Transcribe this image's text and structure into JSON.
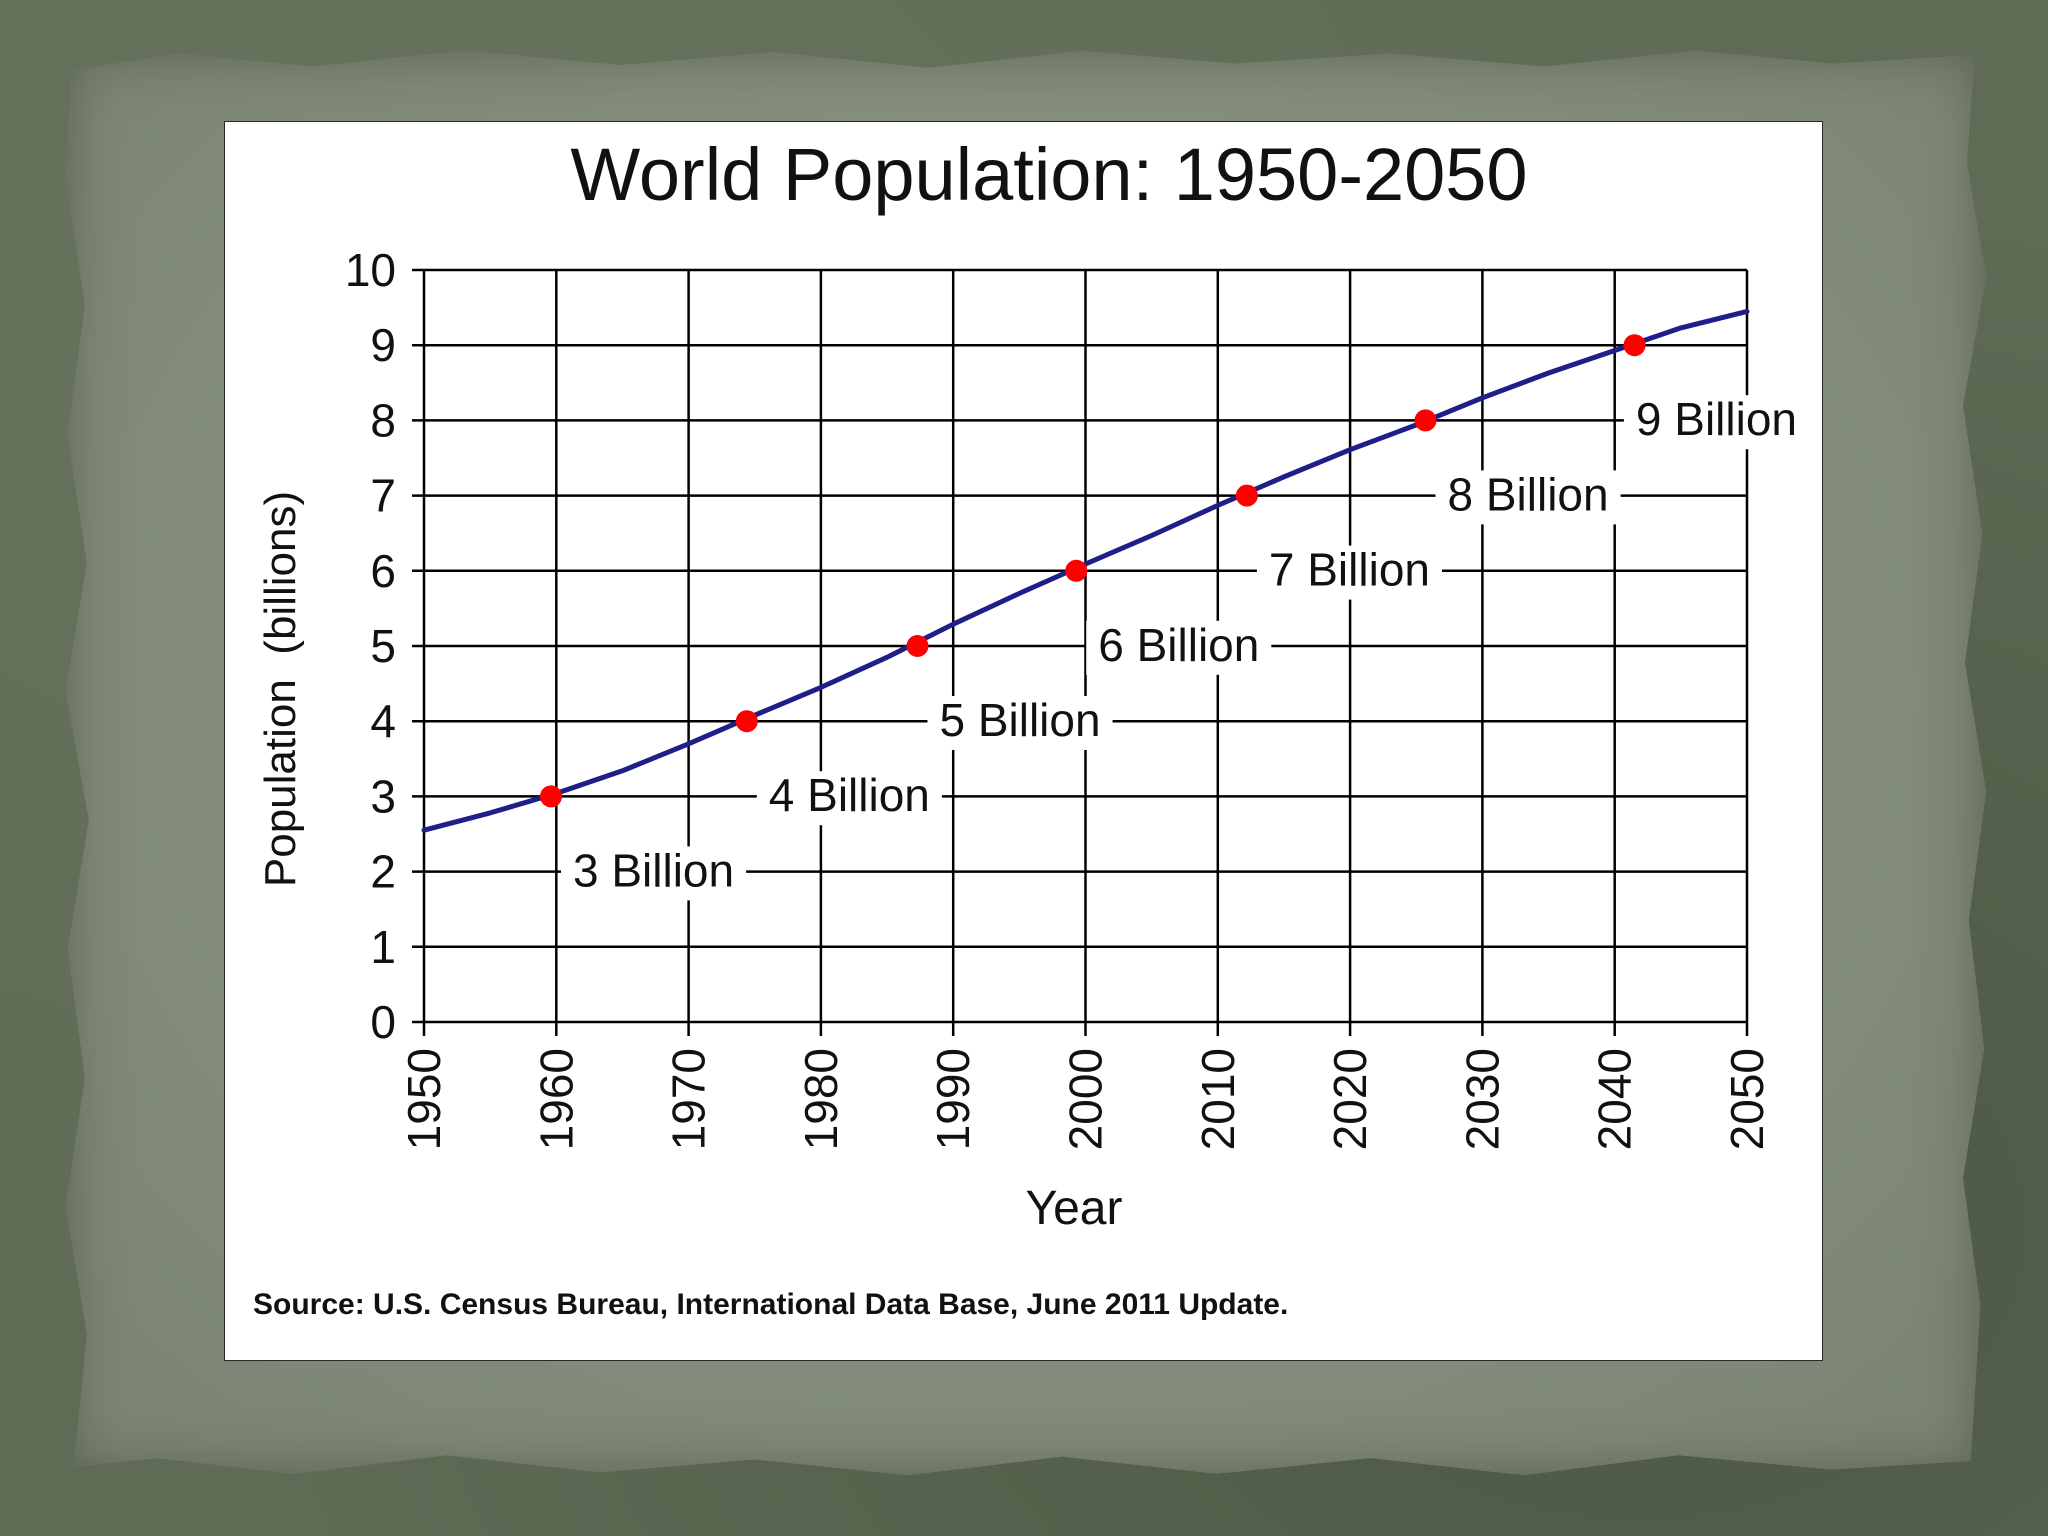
{
  "colors": {
    "line": "#1f1f8a",
    "point": "#ff0000",
    "grid": "#000000",
    "text": "#111111"
  },
  "chart_data": {
    "type": "line",
    "title": "World Population: 1950-2050",
    "xlabel": "Year",
    "ylabel": "Population  (billions)",
    "xlim": [
      1950,
      2050
    ],
    "ylim": [
      0,
      10
    ],
    "grid": true,
    "x_ticks": [
      "1950",
      "1960",
      "1970",
      "1980",
      "1990",
      "2000",
      "2010",
      "2020",
      "2030",
      "2040",
      "2050"
    ],
    "y_ticks": [
      "0",
      "1",
      "2",
      "3",
      "4",
      "5",
      "6",
      "7",
      "8",
      "9",
      "10"
    ],
    "series": [
      {
        "x": [
          1950,
          1955,
          1960,
          1965,
          1970,
          1975,
          1980,
          1985,
          1990,
          1995,
          2000,
          2005,
          2010,
          2015,
          2020,
          2025,
          2030,
          2035,
          2040,
          2045,
          2050
        ],
        "y": [
          2.55,
          2.78,
          3.04,
          3.34,
          3.7,
          4.08,
          4.45,
          4.85,
          5.29,
          5.7,
          6.09,
          6.47,
          6.87,
          7.25,
          7.61,
          7.94,
          8.3,
          8.63,
          8.93,
          9.23,
          9.45
        ]
      }
    ],
    "milestones": [
      {
        "year": 1959.6,
        "value": 3,
        "label": "3 Billion"
      },
      {
        "year": 1974.4,
        "value": 4,
        "label": "4 Billion"
      },
      {
        "year": 1987.3,
        "value": 5,
        "label": "5 Billion"
      },
      {
        "year": 1999.3,
        "value": 6,
        "label": "6 Billion"
      },
      {
        "year": 2012.2,
        "value": 7,
        "label": "7 Billion"
      },
      {
        "year": 2025.7,
        "value": 8,
        "label": "8 Billion"
      },
      {
        "year": 2041.5,
        "value": 9,
        "label": "9 Billion"
      }
    ],
    "source": "Source: U.S. Census Bureau, International Data Base, June 2011 Update."
  }
}
